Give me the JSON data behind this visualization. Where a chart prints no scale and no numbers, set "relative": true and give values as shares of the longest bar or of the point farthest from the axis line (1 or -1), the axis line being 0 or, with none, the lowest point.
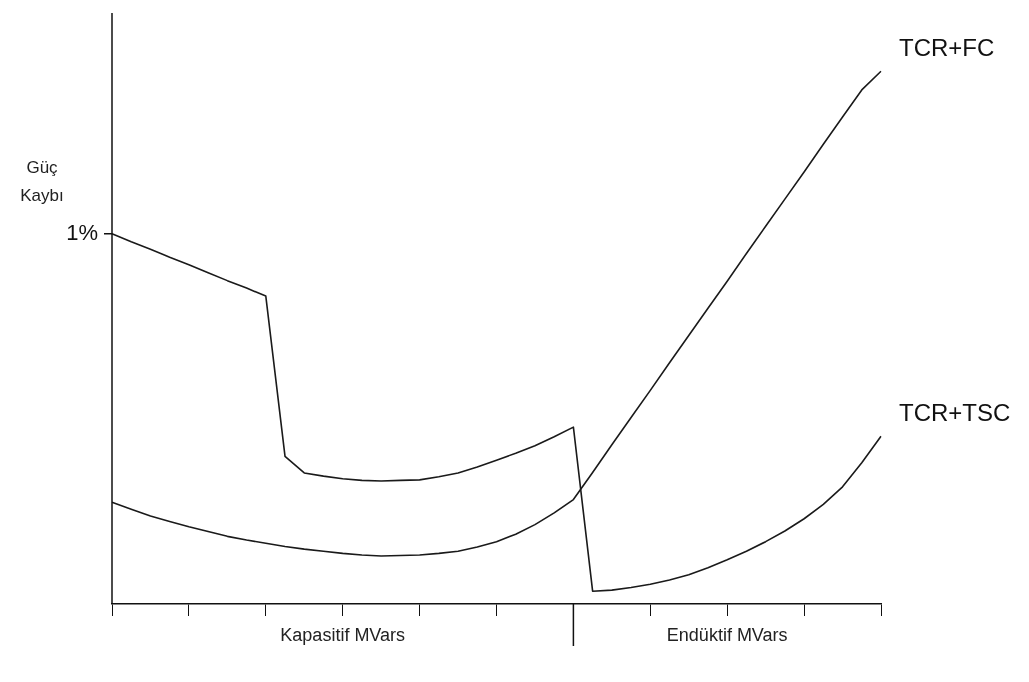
{
  "chart_data": {
    "type": "line",
    "relative": true,
    "ylabel": "Güç\nKaybı",
    "categories": [
      null,
      null,
      null,
      null,
      null,
      null,
      null,
      null,
      null,
      null,
      null,
      null,
      null,
      null,
      null,
      null,
      null,
      null,
      null,
      null,
      null,
      null,
      null,
      null,
      null,
      null,
      null,
      null,
      null,
      null,
      null,
      null,
      null,
      null,
      null,
      null,
      null,
      null,
      null,
      null,
      null
    ],
    "series": [
      {
        "name": "TCR+TSC",
        "color": "#1a1a1a",
        "values": [
          0.695,
          0.68,
          0.666,
          0.651,
          0.637,
          0.622,
          0.607,
          0.593,
          0.578,
          0.277,
          0.246,
          0.24,
          0.235,
          0.232,
          0.231,
          0.232,
          0.233,
          0.239,
          0.246,
          0.257,
          0.27,
          0.283,
          0.297,
          0.314,
          0.332,
          0.024,
          0.026,
          0.031,
          0.037,
          0.045,
          0.055,
          0.068,
          0.083,
          0.099,
          0.117,
          0.137,
          0.16,
          0.187,
          0.22,
          0.265,
          0.315
        ]
      },
      {
        "name": "TCR+FC",
        "color": "#1a1a1a",
        "values": [
          0.191,
          0.178,
          0.165,
          0.155,
          0.145,
          0.136,
          0.127,
          0.12,
          0.114,
          0.108,
          0.103,
          0.099,
          0.095,
          0.092,
          0.09,
          0.091,
          0.092,
          0.095,
          0.099,
          0.107,
          0.117,
          0.131,
          0.149,
          0.171,
          0.196,
          0.247,
          0.299,
          0.35,
          0.401,
          0.453,
          0.504,
          0.555,
          0.606,
          0.658,
          0.709,
          0.76,
          0.811,
          0.863,
          0.914,
          0.965,
          1
        ]
      }
    ],
    "annotations": [
      "1%",
      "Kapasitif MVars",
      "Endüktif MVars"
    ],
    "legend": false,
    "marker": "none",
    "line_style": "solid"
  }
}
